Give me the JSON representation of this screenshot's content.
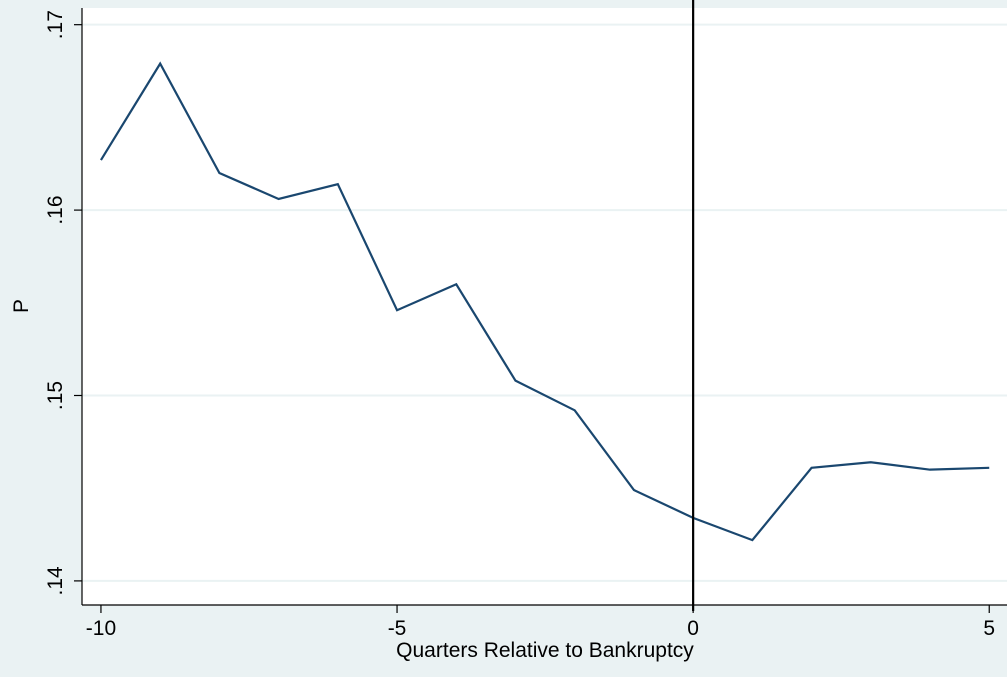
{
  "chart_data": {
    "type": "line",
    "x_label": "Quarters Relative to Bankruptcy",
    "y_label": "P",
    "x": [
      -10,
      -9,
      -8,
      -7,
      -6,
      -5,
      -4,
      -3,
      -2,
      -1,
      0,
      1,
      2,
      3,
      4,
      5
    ],
    "series": [
      {
        "color": "#1a476f",
        "values": [
          0.1627,
          0.1679,
          0.162,
          0.1606,
          0.1614,
          0.1546,
          0.156,
          0.1508,
          0.1492,
          0.1449,
          0.1434,
          0.1422,
          0.1461,
          0.1464,
          0.146,
          0.1461
        ]
      }
    ],
    "reference_line": {
      "x": 0,
      "color": "#000000"
    },
    "xlim": [
      -10.32,
      5.3
    ],
    "ylim": [
      0.1387,
      0.1709
    ],
    "xticks": [
      -10,
      -5,
      0,
      5
    ],
    "yticks": [
      {
        "value": 0.14,
        "label": ".14"
      },
      {
        "value": 0.15,
        "label": ".15"
      },
      {
        "value": 0.16,
        "label": ".16"
      },
      {
        "value": 0.17,
        "label": ".17"
      }
    ],
    "grid": true
  }
}
